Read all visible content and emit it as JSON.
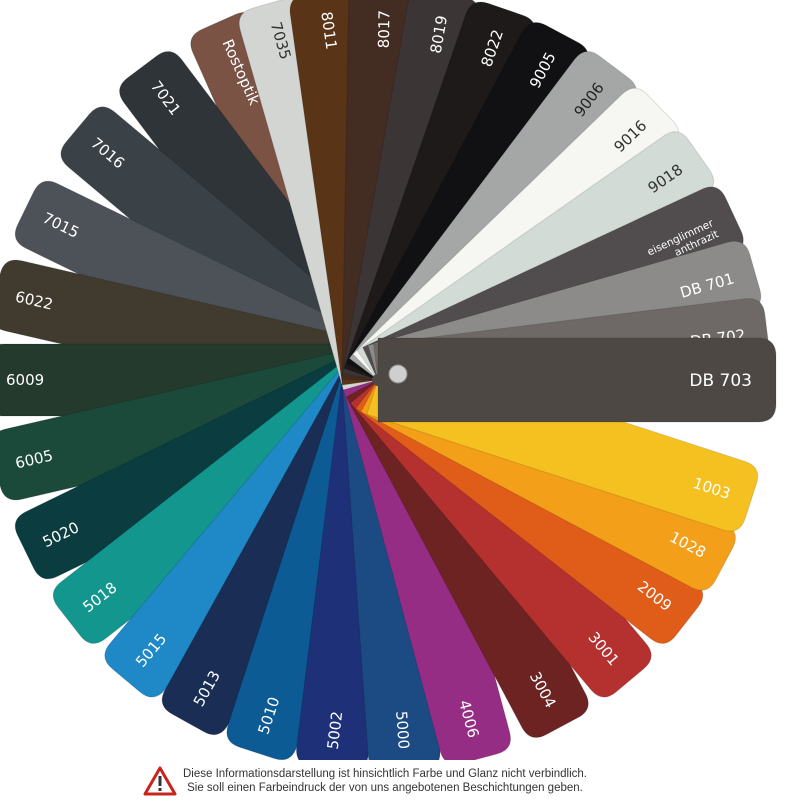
{
  "swatches": [
    {
      "label": "7035",
      "color": "#d3d5d2",
      "text_color": "#333333"
    },
    {
      "label": "8011",
      "color": "#5a3416",
      "text_color": "#ffffff"
    },
    {
      "label": "8017",
      "color": "#432c22",
      "text_color": "#ffffff"
    },
    {
      "label": "8019",
      "color": "#3b3535",
      "text_color": "#ffffff"
    },
    {
      "label": "8022",
      "color": "#1e1a1a",
      "text_color": "#ffffff"
    },
    {
      "label": "9005",
      "color": "#111113",
      "text_color": "#ffffff"
    },
    {
      "label": "9006",
      "color": "#a5a6a6",
      "text_color": "#222222"
    },
    {
      "label": "9016",
      "color": "#f6f6f2",
      "text_color": "#333333"
    },
    {
      "label": "9018",
      "color": "#d3dbd7",
      "text_color": "#333333"
    },
    {
      "label": "eisenglimmer anthrazit",
      "color": "#514d4e",
      "text_color": "#ffffff"
    },
    {
      "label": "DB 701",
      "color": "#8d8b89",
      "text_color": "#ffffff"
    },
    {
      "label": "DB 702",
      "color": "#6e6966",
      "text_color": "#ffffff"
    },
    {
      "label": "DB 703",
      "color": "#4e4845",
      "text_color": "#ffffff"
    },
    {
      "label": "1003",
      "color": "#f4c120",
      "text_color": "#ffffff"
    },
    {
      "label": "1028",
      "color": "#f39f1a",
      "text_color": "#ffffff"
    },
    {
      "label": "2009",
      "color": "#e05d19",
      "text_color": "#ffffff"
    },
    {
      "label": "3001",
      "color": "#b5312f",
      "text_color": "#ffffff"
    },
    {
      "label": "3004",
      "color": "#6c2321",
      "text_color": "#ffffff"
    },
    {
      "label": "4006",
      "color": "#962d85",
      "text_color": "#ffffff"
    },
    {
      "label": "5000",
      "color": "#1c4a83",
      "text_color": "#ffffff"
    },
    {
      "label": "5002",
      "color": "#1e3078",
      "text_color": "#ffffff"
    },
    {
      "label": "5010",
      "color": "#0c5b95",
      "text_color": "#ffffff"
    },
    {
      "label": "5013",
      "color": "#1a2d55",
      "text_color": "#ffffff"
    },
    {
      "label": "5015",
      "color": "#1f88c6",
      "text_color": "#ffffff"
    },
    {
      "label": "5018",
      "color": "#12968e",
      "text_color": "#ffffff"
    },
    {
      "label": "5020",
      "color": "#0a3c40",
      "text_color": "#ffffff"
    },
    {
      "label": "6005",
      "color": "#1b4a3b",
      "text_color": "#ffffff"
    },
    {
      "label": "6009",
      "color": "#243a2d",
      "text_color": "#ffffff"
    },
    {
      "label": "6022",
      "color": "#403a2f",
      "text_color": "#ffffff"
    },
    {
      "label": "7015",
      "color": "#4c5257",
      "text_color": "#ffffff"
    },
    {
      "label": "7016",
      "color": "#3b4247",
      "text_color": "#ffffff"
    },
    {
      "label": "7021",
      "color": "#2f3438",
      "text_color": "#ffffff"
    },
    {
      "label": "Rostoptik",
      "color": "#7a5345",
      "text_color": "#ffffff"
    }
  ],
  "disclaimer": {
    "line1": "Diese Informationsdarstellung ist hinsichtlich Farbe und Glanz nicht verbindlich.",
    "line2": "Sie soll einen Farbeindruck der von uns angebotenen Beschichtungen geben.",
    "icon": "warning-triangle-icon",
    "icon_color": "#c8231d"
  }
}
